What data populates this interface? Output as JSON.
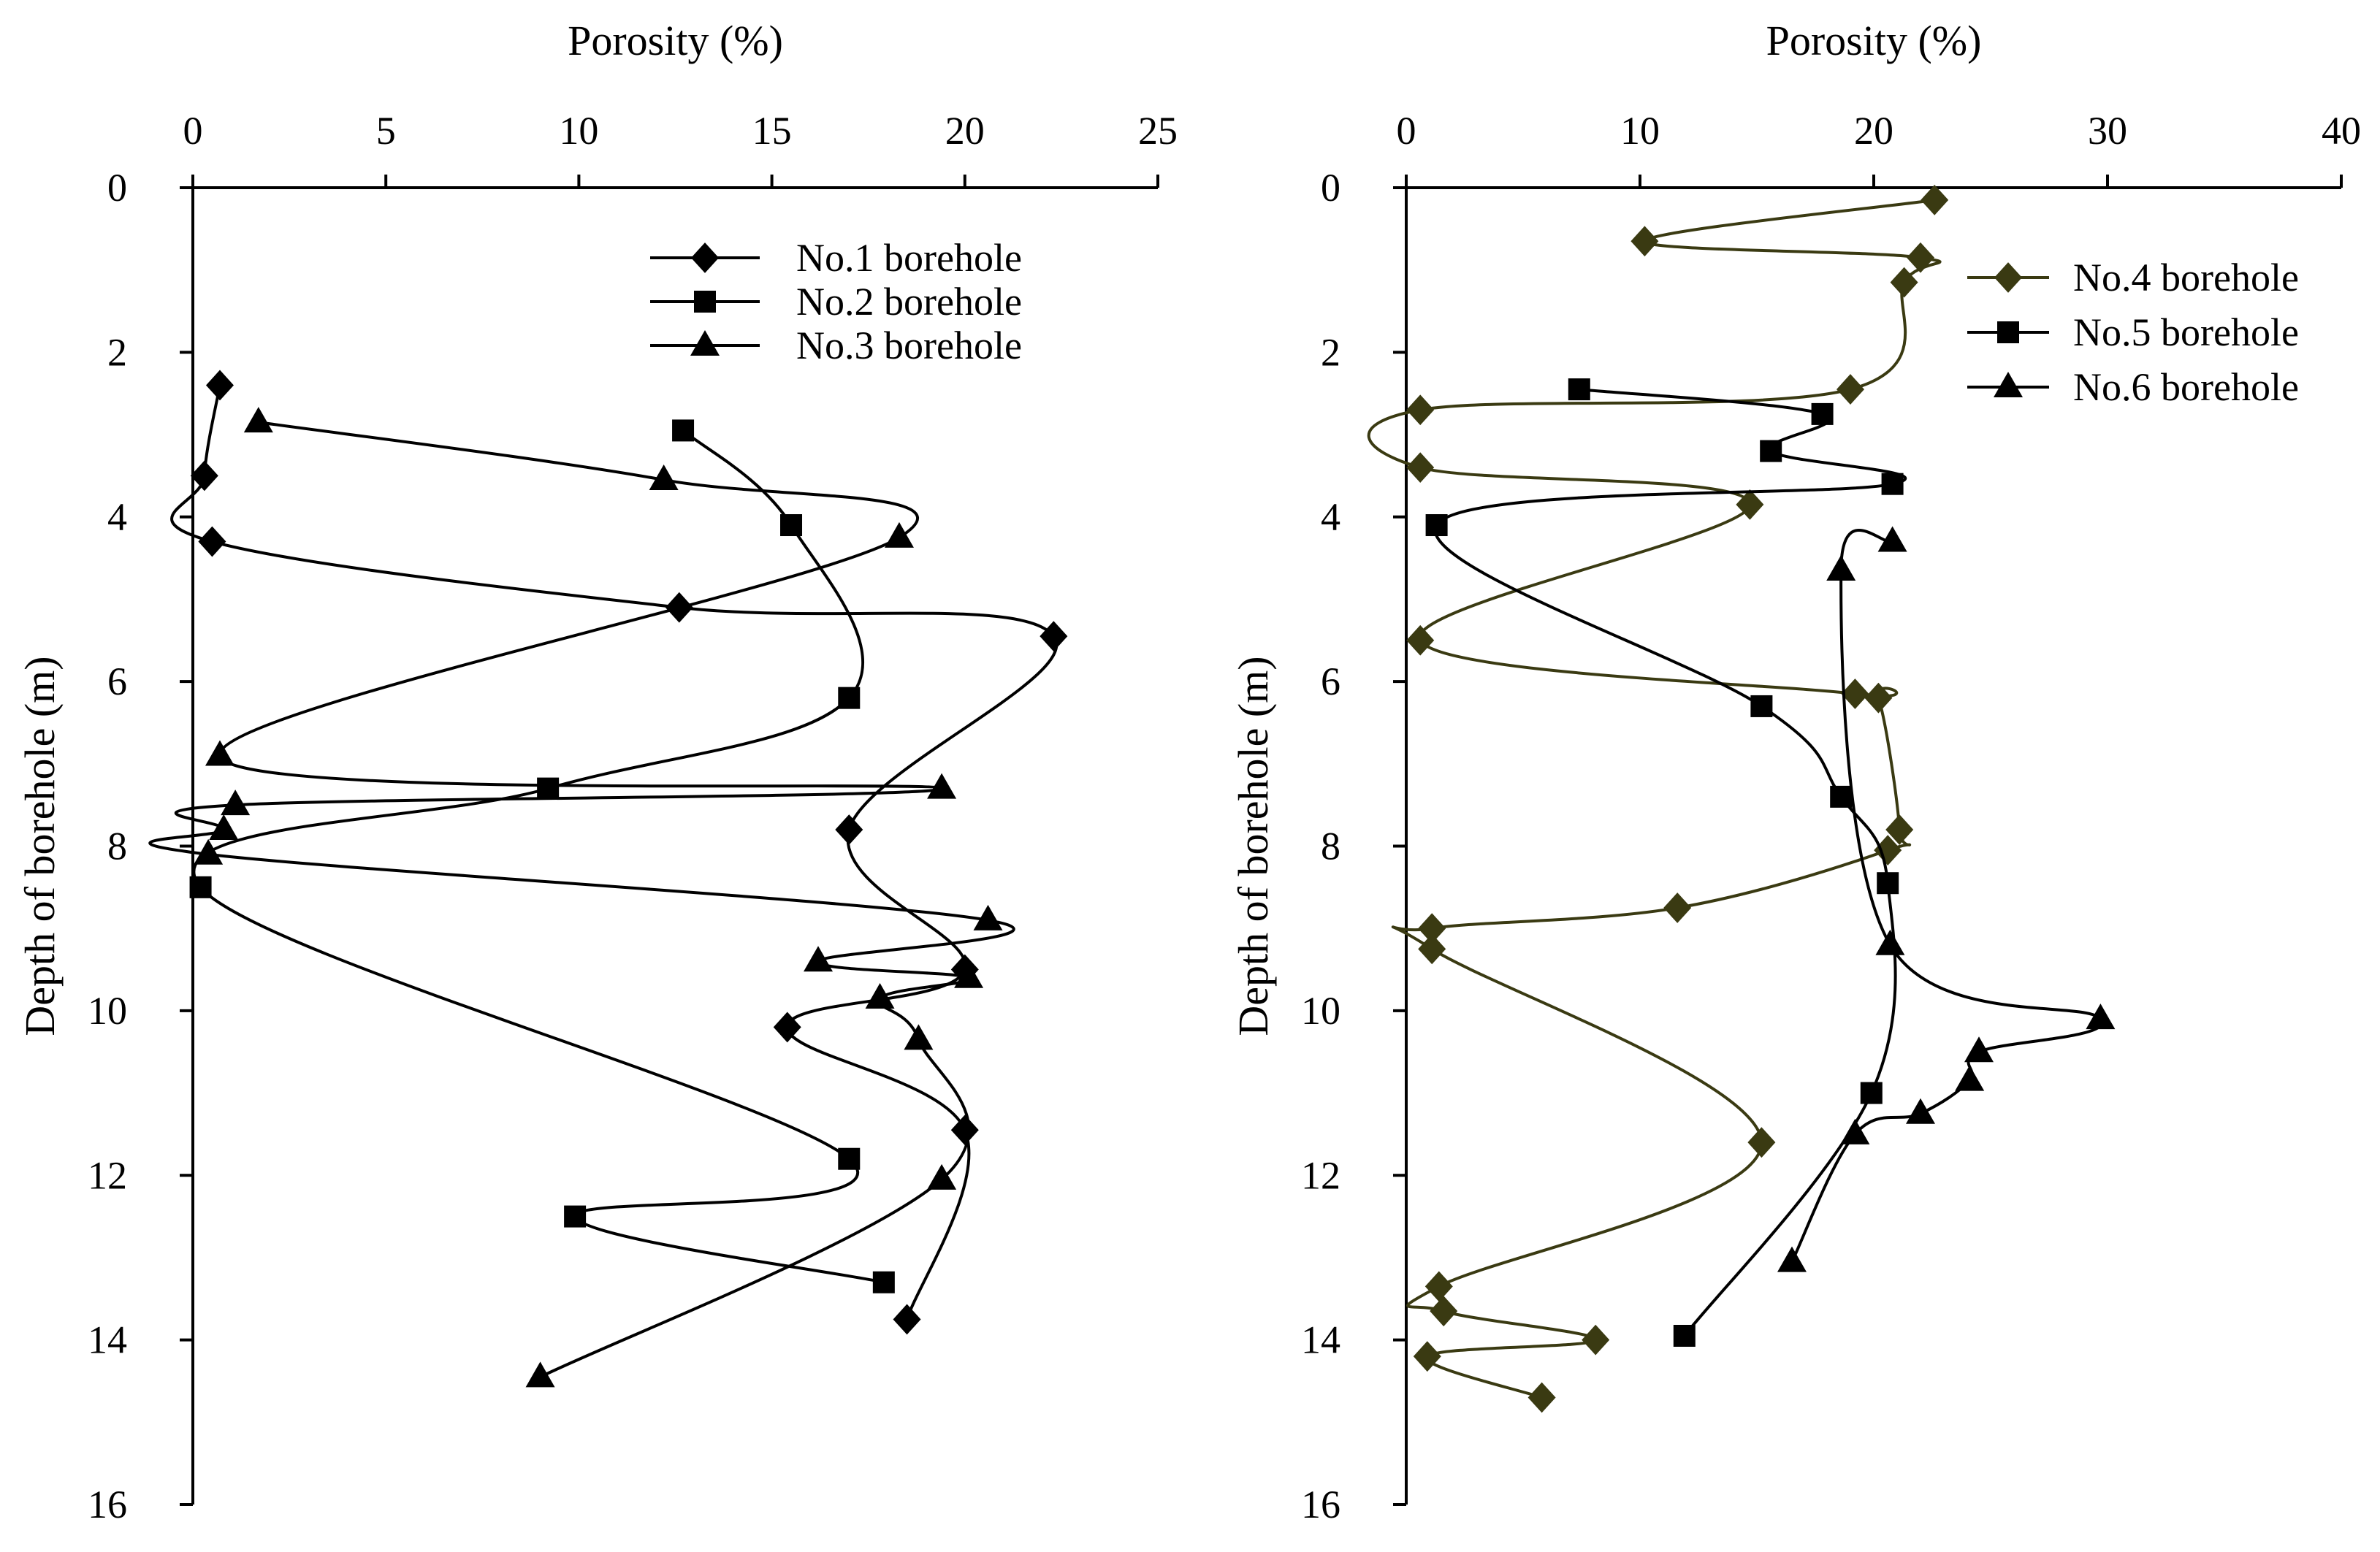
{
  "chart_data": [
    {
      "type": "line",
      "xlabel": "Porosity (%)",
      "ylabel": "Depth of borehole (m)",
      "xlim": [
        0,
        25
      ],
      "ylim": [
        0,
        16
      ],
      "x_ticks": [
        "0",
        "5",
        "10",
        "15",
        "20",
        "25"
      ],
      "y_ticks": [
        "0",
        "2",
        "4",
        "6",
        "8",
        "10",
        "12",
        "14",
        "16"
      ],
      "x_axis_position": "top",
      "y_inverted": true,
      "grid": false,
      "legend_position": "top-right",
      "series": [
        {
          "name": "No.1 borehole",
          "marker": "diamond",
          "color": "#000000",
          "points": [
            [
              0.7,
              2.4
            ],
            [
              0.3,
              3.5
            ],
            [
              0.5,
              4.3
            ],
            [
              12.6,
              5.1
            ],
            [
              22.3,
              5.45
            ],
            [
              17.0,
              7.8
            ],
            [
              20.0,
              9.5
            ],
            [
              15.4,
              10.2
            ],
            [
              20.0,
              11.45
            ],
            [
              18.5,
              13.75
            ]
          ]
        },
        {
          "name": "No.2 borehole",
          "marker": "square",
          "color": "#000000",
          "points": [
            [
              12.7,
              2.95
            ],
            [
              15.5,
              4.1
            ],
            [
              17.0,
              6.2
            ],
            [
              9.2,
              7.3
            ],
            [
              0.2,
              8.5
            ],
            [
              17.0,
              11.8
            ],
            [
              9.9,
              12.5
            ],
            [
              17.9,
              13.3
            ]
          ]
        },
        {
          "name": "No.3 borehole",
          "marker": "triangle",
          "color": "#000000",
          "points": [
            [
              1.7,
              2.85
            ],
            [
              12.2,
              3.55
            ],
            [
              18.3,
              4.25
            ],
            [
              0.7,
              6.9
            ],
            [
              19.4,
              7.3
            ],
            [
              1.1,
              7.5
            ],
            [
              0.8,
              7.8
            ],
            [
              0.4,
              8.1
            ],
            [
              20.6,
              8.9
            ],
            [
              16.2,
              9.4
            ],
            [
              20.1,
              9.6
            ],
            [
              17.8,
              9.85
            ],
            [
              18.8,
              10.35
            ],
            [
              19.4,
              12.05
            ],
            [
              9.0,
              14.45
            ]
          ]
        }
      ]
    },
    {
      "type": "line",
      "xlabel": "Porosity (%)",
      "ylabel": "Depth of borehole (m)",
      "xlim": [
        0,
        40
      ],
      "ylim": [
        0,
        16
      ],
      "x_ticks": [
        "0",
        "10",
        "20",
        "30",
        "40"
      ],
      "y_ticks": [
        "0",
        "2",
        "4",
        "6",
        "8",
        "10",
        "12",
        "14",
        "16"
      ],
      "x_axis_position": "top",
      "y_inverted": true,
      "grid": false,
      "legend_position": "top-right",
      "series": [
        {
          "name": "No.4 borehole",
          "marker": "diamond",
          "color": "#3a3a12",
          "points": [
            [
              22.6,
              0.15
            ],
            [
              10.2,
              0.65
            ],
            [
              22.0,
              0.85
            ],
            [
              21.3,
              1.15
            ],
            [
              19.0,
              2.45
            ],
            [
              0.6,
              2.7
            ],
            [
              0.6,
              3.4
            ],
            [
              14.7,
              3.85
            ],
            [
              0.6,
              5.5
            ],
            [
              19.2,
              6.15
            ],
            [
              20.2,
              6.2
            ],
            [
              21.1,
              7.8
            ],
            [
              20.6,
              8.05
            ],
            [
              11.6,
              8.75
            ],
            [
              1.1,
              9.0
            ],
            [
              1.1,
              9.25
            ],
            [
              15.2,
              11.6
            ],
            [
              1.4,
              13.35
            ],
            [
              1.6,
              13.65
            ],
            [
              8.1,
              14.0
            ],
            [
              0.9,
              14.2
            ],
            [
              5.8,
              14.7
            ]
          ]
        },
        {
          "name": "No.5 borehole",
          "marker": "square",
          "color": "#000000",
          "points": [
            [
              7.4,
              2.45
            ],
            [
              17.8,
              2.75
            ],
            [
              15.6,
              3.2
            ],
            [
              20.8,
              3.6
            ],
            [
              1.3,
              4.1
            ],
            [
              15.2,
              6.3
            ],
            [
              18.6,
              7.4
            ],
            [
              20.6,
              8.45
            ],
            [
              19.9,
              11.0
            ],
            [
              11.9,
              13.95
            ]
          ]
        },
        {
          "name": "No.6 borehole",
          "marker": "triangle",
          "color": "#000000",
          "points": [
            [
              20.8,
              4.3
            ],
            [
              18.6,
              4.65
            ],
            [
              20.7,
              9.2
            ],
            [
              29.7,
              10.1
            ],
            [
              24.5,
              10.5
            ],
            [
              24.1,
              10.85
            ],
            [
              22.0,
              11.25
            ],
            [
              19.2,
              11.5
            ],
            [
              16.5,
              13.05
            ]
          ]
        }
      ]
    }
  ]
}
